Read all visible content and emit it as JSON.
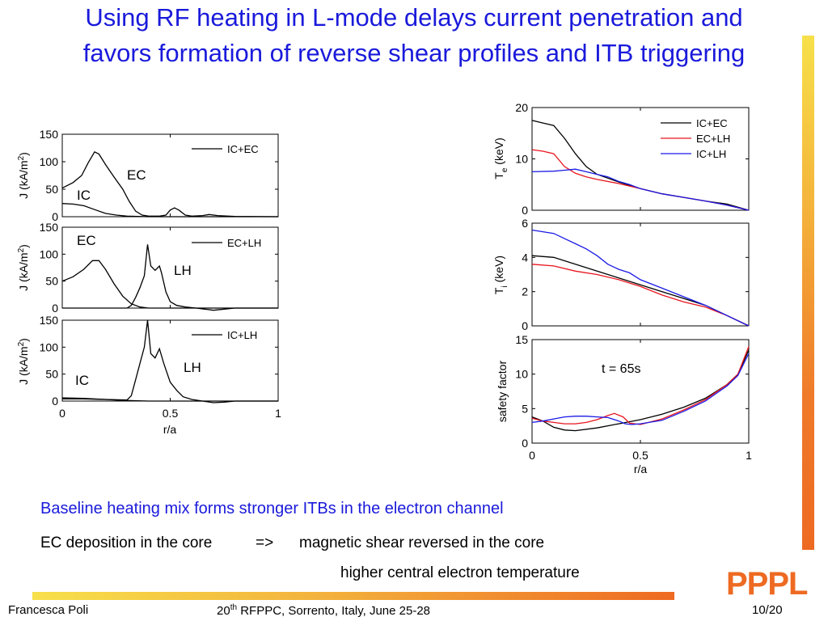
{
  "slide": {
    "title_line1": "Using RF heating in L-mode delays current penetration and",
    "title_line2": "favors formation of reverse shear profiles and ITB triggering",
    "subtitle": "Baseline heating mix forms stronger ITBs in the electron channel",
    "line1_left": "EC deposition in the core",
    "line1_arrow": "=>",
    "line1_right": "magnetic shear reversed in the core",
    "line2": "higher central electron temperature",
    "footer_author": "Francesca Poli",
    "footer_conf_pre": "20",
    "footer_conf_sup": "th",
    "footer_conf_post": " RFPPC, Sorrento, Italy, June 25-28",
    "footer_page": "10/20",
    "logo_text": "PPPL"
  },
  "colors": {
    "title": "#1a1adb",
    "accent_orange": "#ee6a22",
    "accent_yellow": "#f7e04a",
    "red": "#e8141e",
    "blue": "#1a1ae6"
  },
  "chart_data": [
    {
      "type": "line",
      "id": "j_ic_ec",
      "xlabel": "",
      "ylabel": "J (kA/m2)",
      "ylabel_main": "J (kA/m",
      "ylabel_sup": "2",
      "ylabel_end": ")",
      "xlim": [
        0,
        1
      ],
      "ylim": [
        0,
        150
      ],
      "yticks": [
        0,
        50,
        100,
        150
      ],
      "xticks": [],
      "legend": "top-right",
      "series": [
        {
          "name": "IC+EC",
          "color": "#000000",
          "x": [
            0,
            0.05,
            0.09,
            0.12,
            0.15,
            0.17,
            0.2,
            0.24,
            0.28,
            0.31,
            0.34,
            0.37,
            0.4,
            0.45,
            0.48,
            0.5,
            0.52,
            0.54,
            0.57,
            0.6,
            0.65,
            0.68,
            0.72,
            0.8,
            1
          ],
          "y": [
            52,
            62,
            75,
            98,
            118,
            114,
            95,
            72,
            50,
            28,
            10,
            3,
            1,
            1,
            3,
            12,
            16,
            12,
            3,
            1,
            2,
            4,
            2,
            0.5,
            0
          ]
        },
        {
          "name": "",
          "color": "#000000",
          "x": [
            0,
            0.05,
            0.1,
            0.15,
            0.2,
            0.25,
            0.3,
            0.35,
            0.4,
            0.5,
            1
          ],
          "y": [
            24,
            23,
            20,
            13,
            6,
            3,
            1,
            0.5,
            0,
            0,
            0
          ]
        }
      ],
      "annotations": [
        "EC",
        "IC"
      ]
    },
    {
      "type": "line",
      "id": "j_ec_lh",
      "xlabel": "",
      "ylabel": "J (kA/m2)",
      "ylabel_main": "J (kA/m",
      "ylabel_sup": "2",
      "ylabel_end": ")",
      "xlim": [
        0,
        1
      ],
      "ylim": [
        0,
        150
      ],
      "yticks": [
        0,
        50,
        100,
        150
      ],
      "xticks": [],
      "legend": "top-right",
      "series": [
        {
          "name": "EC+LH",
          "color": "#000000",
          "x": [
            0,
            0.05,
            0.1,
            0.14,
            0.17,
            0.2,
            0.24,
            0.28,
            0.32,
            0.36,
            0.4,
            0.45,
            0.5,
            0.6,
            0.7,
            1
          ],
          "y": [
            50,
            58,
            72,
            88,
            88,
            72,
            45,
            22,
            8,
            2,
            0,
            0,
            0,
            0,
            0,
            0
          ]
        },
        {
          "name": "",
          "color": "#000000",
          "x": [
            0,
            0.2,
            0.3,
            0.32,
            0.34,
            0.36,
            0.38,
            0.395,
            0.41,
            0.43,
            0.45,
            0.46,
            0.48,
            0.5,
            0.53,
            0.57,
            0.62,
            0.66,
            0.7,
            0.75,
            0.8,
            1
          ],
          "y": [
            0,
            0,
            0,
            5,
            20,
            38,
            60,
            118,
            78,
            70,
            78,
            65,
            30,
            12,
            5,
            2,
            0,
            -2,
            -4,
            -2,
            0,
            0
          ]
        }
      ],
      "annotations": [
        "EC",
        "LH"
      ]
    },
    {
      "type": "line",
      "id": "j_ic_lh",
      "xlabel": "r/a",
      "ylabel": "J (kA/m2)",
      "ylabel_main": "J (kA/m",
      "ylabel_sup": "2",
      "ylabel_end": ")",
      "xlim": [
        0,
        1
      ],
      "ylim": [
        0,
        150
      ],
      "yticks": [
        0,
        50,
        100,
        150
      ],
      "xticks": [
        0,
        0.5,
        1
      ],
      "legend": "top-right",
      "series": [
        {
          "name": "IC+LH",
          "color": "#000000",
          "x": [
            0,
            0.1,
            0.2,
            0.3,
            0.32,
            0.34,
            0.36,
            0.38,
            0.395,
            0.41,
            0.43,
            0.45,
            0.47,
            0.5,
            0.53,
            0.56,
            0.6,
            0.65,
            0.7,
            0.75,
            0.8,
            1
          ],
          "y": [
            4,
            4,
            3,
            2,
            10,
            40,
            70,
            100,
            150,
            88,
            80,
            97,
            70,
            35,
            20,
            8,
            3,
            0,
            -3,
            -2,
            0,
            0
          ]
        },
        {
          "name": "",
          "color": "#000000",
          "x": [
            0,
            0.1,
            0.2,
            0.25,
            0.3,
            0.35,
            0.4,
            0.5,
            1
          ],
          "y": [
            6,
            5,
            3,
            2,
            1,
            0.5,
            0,
            0,
            0
          ]
        }
      ],
      "annotations": [
        "LH",
        "IC"
      ]
    },
    {
      "type": "line",
      "id": "te",
      "xlabel": "",
      "ylabel": "T e (keV)",
      "ylabel_main": "T",
      "ylabel_sub": "e",
      "ylabel_end": " (keV)",
      "xlim": [
        0,
        1
      ],
      "ylim": [
        0,
        20
      ],
      "yticks": [
        0,
        10,
        20
      ],
      "xticks": [],
      "legend": "top-right",
      "series": [
        {
          "name": "IC+EC",
          "color": "#000000",
          "x": [
            0,
            0.05,
            0.1,
            0.15,
            0.2,
            0.25,
            0.3,
            0.4,
            0.5,
            0.6,
            0.7,
            0.8,
            0.9,
            1
          ],
          "y": [
            17.5,
            17,
            16.5,
            14,
            11,
            8.5,
            7,
            5.5,
            4.2,
            3.2,
            2.5,
            1.8,
            1.2,
            0
          ]
        },
        {
          "name": "EC+LH",
          "color": "#e8141e",
          "x": [
            0,
            0.05,
            0.1,
            0.15,
            0.2,
            0.25,
            0.3,
            0.4,
            0.5,
            0.6,
            0.7,
            0.8,
            0.9,
            1
          ],
          "y": [
            11.8,
            11.5,
            11,
            8.5,
            7.2,
            6.5,
            6,
            5.2,
            4.2,
            3.2,
            2.5,
            1.8,
            1,
            0
          ]
        },
        {
          "name": "IC+LH",
          "color": "#1a1ae6",
          "x": [
            0,
            0.1,
            0.15,
            0.2,
            0.25,
            0.3,
            0.35,
            0.4,
            0.45,
            0.5,
            0.6,
            0.7,
            0.8,
            0.9,
            1
          ],
          "y": [
            7.5,
            7.6,
            7.8,
            8,
            7.5,
            7,
            6.5,
            5.6,
            5,
            4.2,
            3.2,
            2.5,
            1.8,
            1,
            0
          ]
        }
      ]
    },
    {
      "type": "line",
      "id": "ti",
      "xlabel": "",
      "ylabel": "T i (keV)",
      "ylabel_main": "T",
      "ylabel_sub": "i",
      "ylabel_end": " (keV)",
      "xlim": [
        0,
        1
      ],
      "ylim": [
        0,
        6
      ],
      "yticks": [
        0,
        2,
        4,
        6
      ],
      "xticks": [],
      "series": [
        {
          "name": "IC+EC",
          "color": "#000000",
          "x": [
            0,
            0.1,
            0.2,
            0.3,
            0.4,
            0.5,
            0.6,
            0.7,
            0.8,
            0.9,
            1
          ],
          "y": [
            4.1,
            4.0,
            3.6,
            3.2,
            2.8,
            2.4,
            2.0,
            1.6,
            1.2,
            0.6,
            0
          ]
        },
        {
          "name": "EC+LH",
          "color": "#e8141e",
          "x": [
            0,
            0.1,
            0.2,
            0.3,
            0.4,
            0.5,
            0.6,
            0.7,
            0.8,
            0.9,
            1
          ],
          "y": [
            3.6,
            3.5,
            3.2,
            3.0,
            2.7,
            2.3,
            1.8,
            1.4,
            1.1,
            0.6,
            0
          ]
        },
        {
          "name": "IC+LH",
          "color": "#1a1ae6",
          "x": [
            0,
            0.1,
            0.15,
            0.2,
            0.25,
            0.3,
            0.35,
            0.4,
            0.45,
            0.5,
            0.6,
            0.7,
            0.8,
            0.9,
            1
          ],
          "y": [
            5.6,
            5.4,
            5.1,
            4.8,
            4.5,
            4.1,
            3.6,
            3.3,
            3.1,
            2.7,
            2.2,
            1.7,
            1.2,
            0.6,
            0
          ]
        }
      ]
    },
    {
      "type": "line",
      "id": "q",
      "xlabel": "r/a",
      "ylabel": "safety factor",
      "xlim": [
        0,
        1
      ],
      "ylim": [
        0,
        15
      ],
      "yticks": [
        0,
        5,
        10,
        15
      ],
      "xticks": [
        0,
        0.5,
        1
      ],
      "annotation": "t = 65s",
      "series": [
        {
          "name": "IC+EC",
          "color": "#000000",
          "x": [
            0,
            0.05,
            0.1,
            0.15,
            0.2,
            0.3,
            0.4,
            0.5,
            0.6,
            0.7,
            0.8,
            0.9,
            0.95,
            1
          ],
          "y": [
            3.8,
            3.2,
            2.3,
            1.9,
            1.8,
            2.2,
            2.8,
            3.4,
            4.2,
            5.2,
            6.5,
            8.5,
            10,
            13.5
          ]
        },
        {
          "name": "EC+LH",
          "color": "#e8141e",
          "x": [
            0,
            0.05,
            0.1,
            0.15,
            0.2,
            0.25,
            0.3,
            0.35,
            0.38,
            0.42,
            0.45,
            0.5,
            0.6,
            0.7,
            0.8,
            0.9,
            0.95,
            1
          ],
          "y": [
            3.6,
            3.2,
            3.0,
            2.8,
            2.8,
            3.0,
            3.4,
            4.0,
            4.3,
            3.8,
            2.9,
            2.7,
            3.5,
            4.8,
            6.3,
            8.5,
            10,
            14
          ]
        },
        {
          "name": "IC+LH",
          "color": "#1a1ae6",
          "x": [
            0,
            0.05,
            0.1,
            0.15,
            0.2,
            0.25,
            0.3,
            0.35,
            0.4,
            0.43,
            0.46,
            0.5,
            0.6,
            0.7,
            0.8,
            0.9,
            0.95,
            1
          ],
          "y": [
            3.0,
            3.2,
            3.5,
            3.8,
            3.9,
            3.9,
            3.8,
            3.7,
            3.2,
            2.8,
            2.7,
            2.8,
            3.3,
            4.6,
            6.1,
            8.3,
            9.8,
            13
          ]
        }
      ]
    }
  ]
}
